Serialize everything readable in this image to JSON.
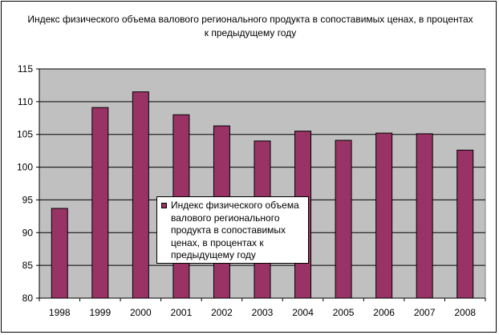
{
  "chart_data": {
    "type": "bar",
    "title": "Индекс физического объема валового регионального продукта в сопоставимых ценах, в процентах к предыдущему году",
    "categories": [
      "1998",
      "1999",
      "2000",
      "2001",
      "2002",
      "2003",
      "2004",
      "2005",
      "2006",
      "2007",
      "2008"
    ],
    "series": [
      {
        "name": "Индекс физического объема валового регионального продукта в сопоставимых ценах, в процентах к предыдущему году",
        "values": [
          93.7,
          109.1,
          111.5,
          108.0,
          106.3,
          104.0,
          105.5,
          104.1,
          105.2,
          105.1,
          102.6
        ]
      }
    ],
    "ylim": [
      80,
      115
    ],
    "yticks": [
      80,
      85,
      90,
      95,
      100,
      105,
      110,
      115
    ],
    "grid": true,
    "legend_position": "center",
    "colors": {
      "bar": "#993366",
      "plot_background": "#c0c0c0",
      "gridline": "#000000"
    }
  }
}
